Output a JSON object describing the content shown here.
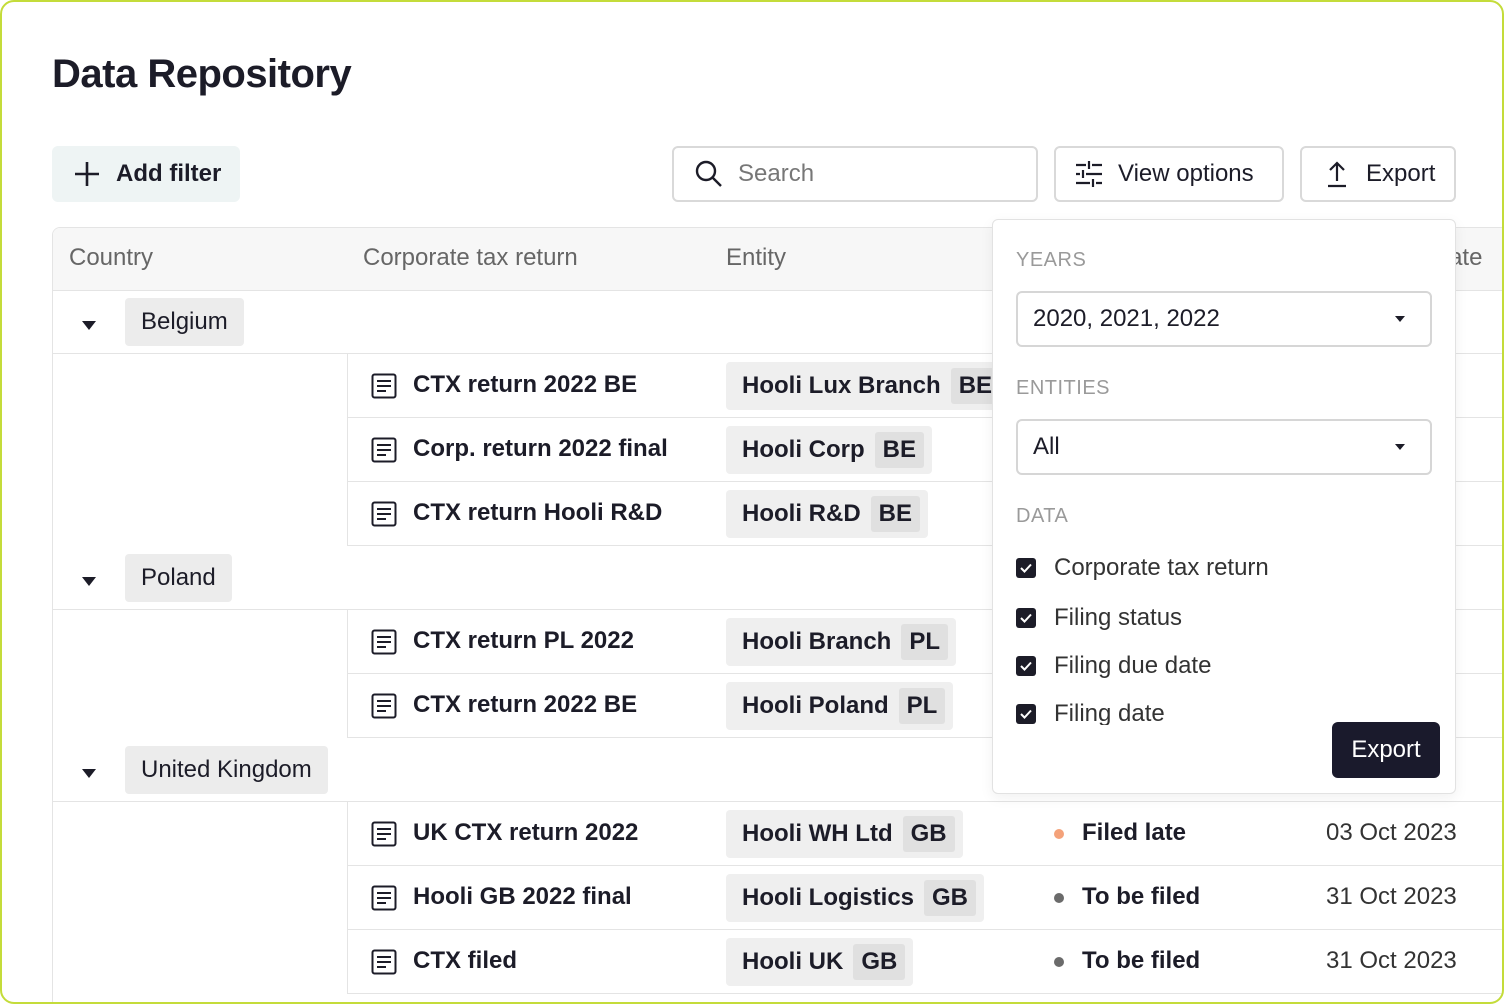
{
  "header": {
    "title": "Data Repository"
  },
  "toolbar": {
    "add_filter": "Add filter",
    "search_placeholder": "Search",
    "view_options": "View options",
    "export": "Export"
  },
  "table": {
    "columns": [
      "Country",
      "Corporate tax return",
      "Entity",
      "Filing due date"
    ],
    "groups": [
      {
        "country": "Belgium",
        "rows": [
          {
            "return": "CTX return 2022 BE",
            "entity": "Hooli Lux Branch",
            "code": "BE"
          },
          {
            "return": "Corp. return 2022 final",
            "entity": "Hooli Corp",
            "code": "BE"
          },
          {
            "return": "CTX return Hooli R&D",
            "entity": "Hooli R&D",
            "code": "BE"
          }
        ]
      },
      {
        "country": "Poland",
        "rows": [
          {
            "return": "CTX return PL 2022",
            "entity": "Hooli Branch",
            "code": "PL"
          },
          {
            "return": "CTX return 2022 BE",
            "entity": "Hooli Poland",
            "code": "PL"
          }
        ]
      },
      {
        "country": "United Kingdom",
        "rows": [
          {
            "return": "UK CTX return 2022",
            "entity": "Hooli WH Ltd",
            "code": "GB",
            "status": "Filed late",
            "status_color": "#f4a27a",
            "date": "03 Oct 2023"
          },
          {
            "return": "Hooli GB 2022 final",
            "entity": "Hooli Logistics",
            "code": "GB",
            "status": "To be filed",
            "status_color": "#6b6b6b",
            "date": "31 Oct 2023"
          },
          {
            "return": "CTX filed",
            "entity": "Hooli UK",
            "code": "GB",
            "status": "To be filed",
            "status_color": "#6b6b6b",
            "date": "31 Oct 2023"
          }
        ]
      }
    ]
  },
  "popover": {
    "years_label": "YEARS",
    "years_value": "2020, 2021, 2022",
    "entities_label": "ENTITIES",
    "entities_value": "All",
    "data_label": "DATA",
    "data_options": [
      "Corporate tax return",
      "Filing status",
      "Filing due date",
      "Filing date"
    ],
    "export": "Export"
  }
}
